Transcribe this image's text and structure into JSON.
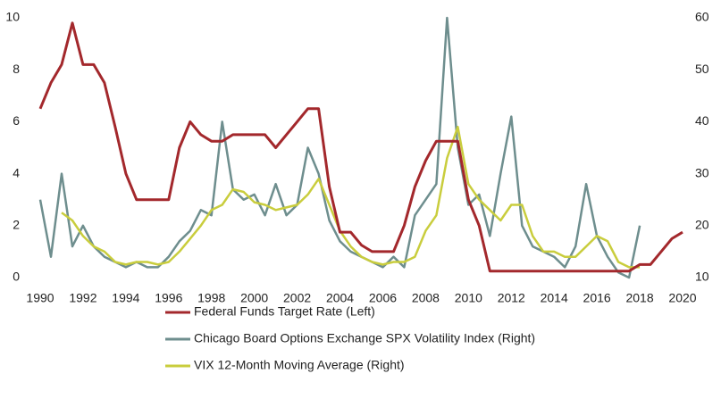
{
  "chart_data": {
    "type": "line",
    "x": [
      1990,
      1990.5,
      1991,
      1991.5,
      1992,
      1992.5,
      1993,
      1993.5,
      1994,
      1994.5,
      1995,
      1995.5,
      1996,
      1996.5,
      1997,
      1997.5,
      1998,
      1998.5,
      1999,
      1999.5,
      2000,
      2000.5,
      2001,
      2001.5,
      2002,
      2002.5,
      2003,
      2003.5,
      2004,
      2004.5,
      2005,
      2005.5,
      2006,
      2006.5,
      2007,
      2007.5,
      2008,
      2008.5,
      2009,
      2009.5,
      2010,
      2010.5,
      2011,
      2011.5,
      2012,
      2012.5,
      2013,
      2013.5,
      2014,
      2014.5,
      2015,
      2015.5,
      2016,
      2016.5,
      2017,
      2017.5,
      2018,
      2018.5,
      2019,
      2019.5,
      2020
    ],
    "xlim": [
      1990,
      2020
    ],
    "xticks": [
      1990,
      1992,
      1994,
      1996,
      1998,
      2000,
      2002,
      2004,
      2006,
      2008,
      2010,
      2012,
      2014,
      2016,
      2018,
      2020
    ],
    "ylim": [
      0,
      10
    ],
    "yticks": [
      0,
      2,
      4,
      6,
      8,
      10
    ],
    "y2lim": [
      10,
      60
    ],
    "y2ticks": [
      10,
      20,
      30,
      40,
      50,
      60
    ],
    "series": [
      {
        "name": "Federal Funds Target Rate (Left)",
        "color": "#a3282c",
        "values": [
          6.5,
          7.5,
          8.2,
          9.8,
          8.2,
          8.2,
          7.5,
          5.8,
          4.0,
          3.0,
          3.0,
          3.0,
          3.0,
          5.0,
          6.0,
          5.5,
          5.25,
          5.25,
          5.5,
          5.5,
          5.5,
          5.5,
          5.0,
          5.5,
          6.0,
          6.5,
          6.5,
          3.5,
          1.75,
          1.75,
          1.25,
          1.0,
          1.0,
          1.0,
          2.0,
          3.5,
          4.5,
          5.25,
          5.25,
          5.25,
          3.0,
          2.0,
          0.25,
          0.25,
          0.25,
          0.25,
          0.25,
          0.25,
          0.25,
          0.25,
          0.25,
          0.25,
          0.25,
          0.25,
          0.25,
          0.25,
          0.5,
          0.5,
          1.0,
          1.5,
          1.75
        ]
      },
      {
        "name": "Chicago Board Options Exchange SPX Volatility Index (Right)",
        "color": "#6e8e8e",
        "axis": "y2",
        "values": [
          25,
          14,
          30,
          16,
          20,
          16,
          14,
          13,
          12,
          13,
          12,
          12,
          14,
          17,
          19,
          23,
          22,
          40,
          27,
          25,
          26,
          22,
          28,
          22,
          24,
          35,
          30,
          21,
          17,
          15,
          14,
          13,
          12,
          14,
          12,
          22,
          25,
          28,
          60,
          35,
          24,
          26,
          18,
          30,
          41,
          20,
          16,
          15,
          14,
          12,
          16,
          28,
          18,
          14,
          11,
          10,
          20,
          null,
          null,
          null,
          null
        ]
      },
      {
        "name": "VIX 12-Month Moving Average (Right)",
        "color": "#c9cd3d",
        "axis": "y2",
        "values": [
          null,
          null,
          22.5,
          21,
          18,
          16,
          15,
          13,
          12.5,
          13,
          13,
          12.5,
          13,
          15,
          17.5,
          20,
          23,
          24,
          27,
          26.5,
          24.5,
          24,
          23,
          23.5,
          24,
          26,
          29,
          24,
          19,
          16,
          14,
          13,
          12.5,
          13,
          13,
          14,
          19,
          22,
          33,
          39,
          28,
          25,
          23,
          21,
          24,
          24,
          18,
          15,
          15,
          14,
          14,
          16,
          18,
          17,
          13,
          12,
          12,
          null,
          null,
          null,
          null
        ]
      }
    ]
  }
}
